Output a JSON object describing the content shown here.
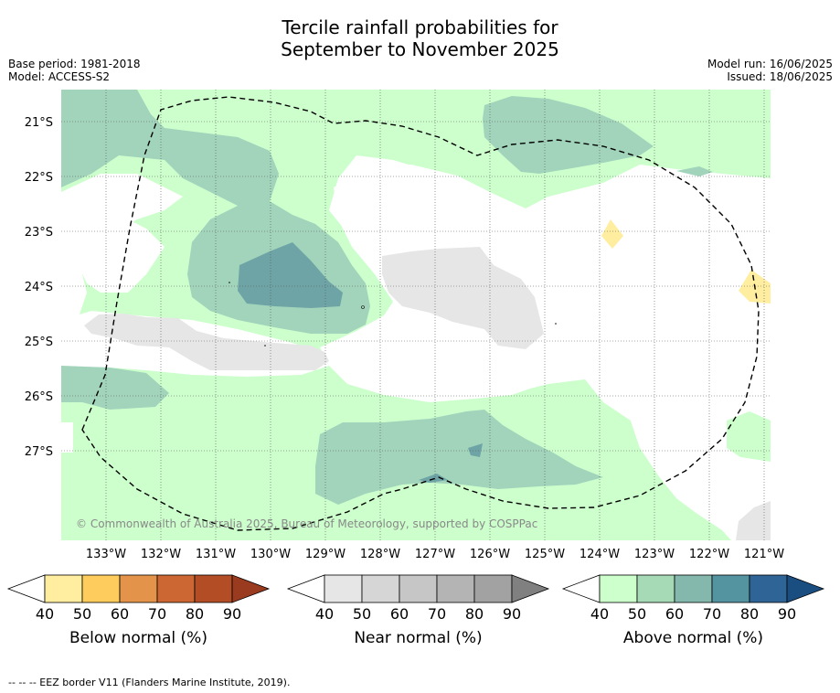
{
  "header": {
    "title_line1": "Tercile rainfall probabilities for",
    "title_line2": "September to November 2025",
    "base_period": "Base period: 1981-2018",
    "model": "Model: ACCESS-S2",
    "model_run": "Model run: 16/06/2025",
    "issued": "Issued: 18/06/2025"
  },
  "map": {
    "lat_labels": [
      "21°S",
      "22°S",
      "23°S",
      "24°S",
      "25°S",
      "26°S",
      "27°S"
    ],
    "lon_labels": [
      "133°W",
      "132°W",
      "131°W",
      "130°W",
      "129°W",
      "128°W",
      "127°W",
      "126°W",
      "125°W",
      "124°W",
      "123°W",
      "122°W",
      "121°W"
    ],
    "copyright": "© Commonwealth of Australia 2025, Bureau of Meteorology, supported by COSPPac",
    "colors": {
      "above_40": "#ccffcc",
      "above_50": "#a1d4bb",
      "above_60": "#6ea4a6",
      "near_40": "#e6e6e6",
      "below_40": "#ffeda0"
    }
  },
  "colorbars": [
    {
      "label": "Below normal (%)",
      "ticks": [
        "40",
        "50",
        "60",
        "70",
        "80",
        "90"
      ],
      "colors": [
        "#ffffff",
        "#ffeda0",
        "#fecc5c",
        "#e3944a",
        "#cc6633",
        "#b34d26",
        "#9a3a1f"
      ]
    },
    {
      "label": "Near normal (%)",
      "ticks": [
        "40",
        "50",
        "60",
        "70",
        "80",
        "90"
      ],
      "colors": [
        "#ffffff",
        "#e6e6e6",
        "#d6d6d6",
        "#c6c6c6",
        "#b4b4b4",
        "#a2a2a2",
        "#808080"
      ]
    },
    {
      "label": "Above normal (%)",
      "ticks": [
        "40",
        "50",
        "60",
        "70",
        "80",
        "90"
      ],
      "colors": [
        "#ffffff",
        "#ccffcc",
        "#a6d9b5",
        "#84b8ad",
        "#5493a0",
        "#2f6496",
        "#1a4d80"
      ]
    }
  ],
  "footnote": "--  --  -- EEZ border V11 (Flanders Marine Institute, 2019)."
}
